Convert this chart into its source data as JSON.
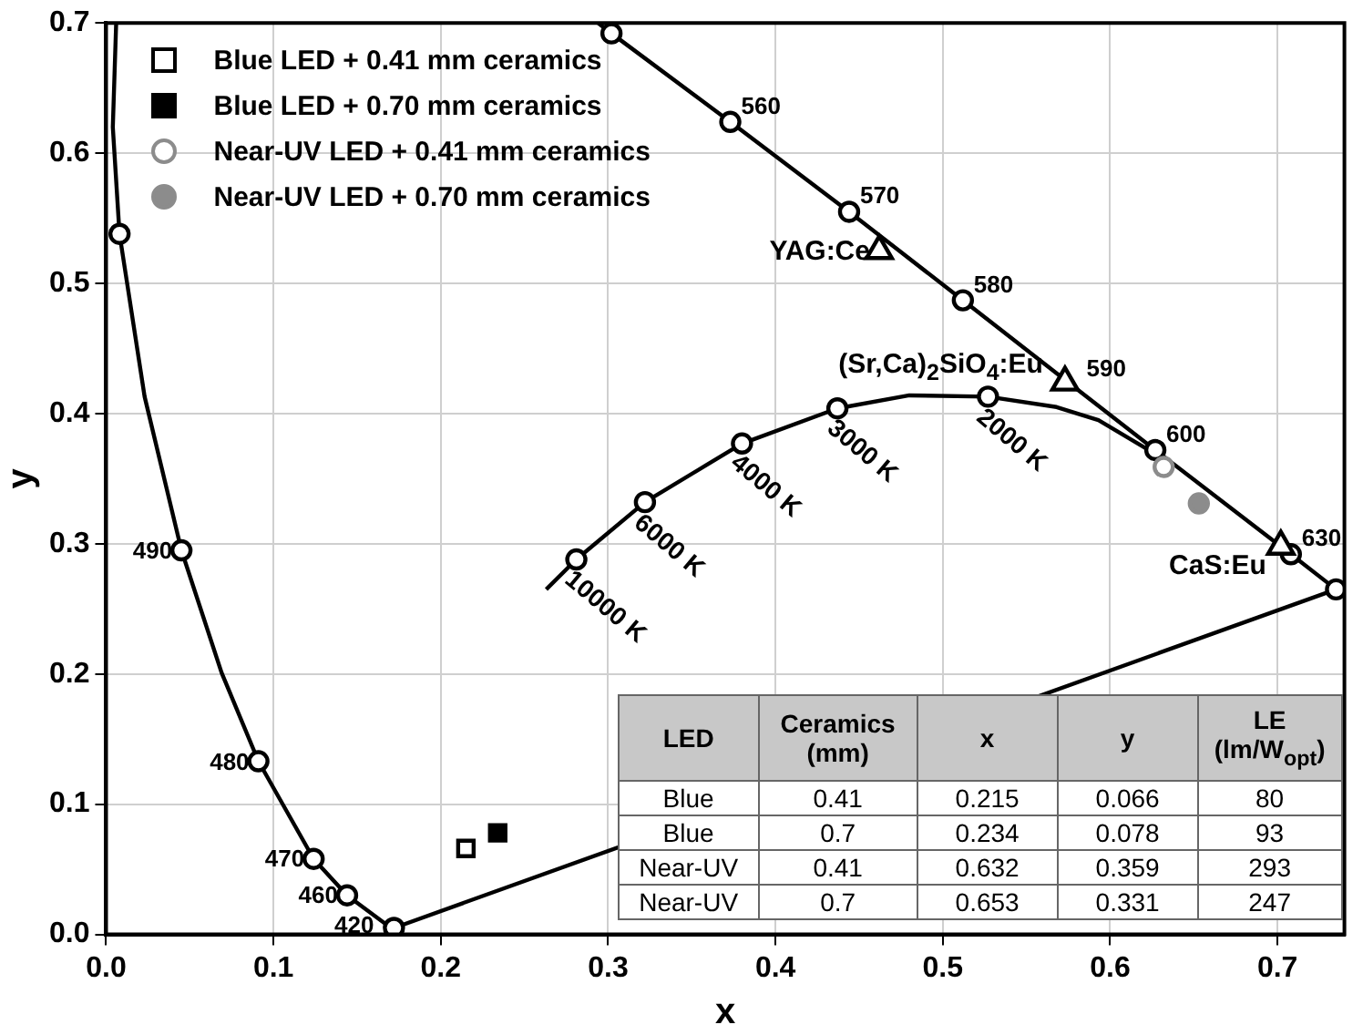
{
  "chart_data": {
    "type": "scatter",
    "xlabel": "x",
    "ylabel": "y",
    "xlim": [
      0,
      0.74
    ],
    "ylim": [
      0,
      0.7
    ],
    "xticks": [
      {
        "value": 0,
        "label": "0.0"
      },
      0.1,
      0.2,
      0.3,
      0.4,
      0.5,
      0.6,
      0.7
    ],
    "yticks": [
      {
        "value": 0,
        "label": "0.0"
      },
      0.1,
      0.2,
      0.3,
      0.4,
      0.5,
      0.6,
      0.7
    ],
    "grid": true,
    "legend": "top left",
    "series": [
      {
        "type": "line",
        "color": "#000000",
        "marker": "none",
        "x": [
          0.006,
          0.004,
          0.008,
          0.023,
          0.045,
          0.069,
          0.091,
          0.124,
          0.144,
          0.166,
          0.172,
          0.735,
          0.708,
          0.627,
          0.575,
          0.512,
          0.444,
          0.373,
          0.302,
          0.294
        ],
        "values": [
          0.7,
          0.62,
          0.538,
          0.413,
          0.295,
          0.201,
          0.133,
          0.058,
          0.03,
          0.009,
          0.005,
          0.265,
          0.292,
          0.372,
          0.424,
          0.487,
          0.555,
          0.624,
          0.692,
          0.7
        ]
      },
      {
        "type": "line",
        "color": "#000000",
        "marker": "none",
        "x": [
          0.263,
          0.281,
          0.322,
          0.38,
          0.437,
          0.48,
          0.527,
          0.568,
          0.593,
          0.623
        ],
        "values": [
          0.265,
          0.288,
          0.332,
          0.377,
          0.404,
          0.414,
          0.413,
          0.405,
          0.395,
          0.372
        ]
      },
      {
        "color": "#000000",
        "colors": [
          "#ffffff",
          "#ffffff",
          "#ffffff",
          "#ffffff",
          "#ffffff",
          "#ffffff",
          "#ffffff",
          "#ffffff",
          "#ffffff",
          "#ffffff",
          "#ffffff",
          "#ffffff",
          "#ffffff",
          "#ffffff"
        ],
        "marker": "circle",
        "x": [
          0.172,
          0.144,
          0.124,
          0.091,
          0.045,
          0.008,
          0.302,
          0.373,
          0.444,
          0.512,
          0.575,
          0.627,
          0.708,
          0.735
        ],
        "values": [
          0.005,
          0.03,
          0.058,
          0.133,
          0.295,
          0.538,
          0.692,
          0.624,
          0.555,
          0.487,
          null,
          0.372,
          0.292,
          0.265
        ]
      },
      {
        "color": "#000000",
        "colors": [
          "#ffffff",
          "#ffffff",
          "#ffffff",
          "#ffffff",
          "#ffffff"
        ],
        "marker": "circle",
        "x": [
          0.281,
          0.322,
          0.38,
          0.437,
          0.527
        ],
        "values": [
          0.288,
          0.332,
          0.377,
          0.404,
          0.413
        ]
      },
      {
        "color": "#000000",
        "colors": [
          "#ffffff",
          "#ffffff",
          "#ffffff"
        ],
        "marker": "triangle",
        "x": [
          0.462,
          0.573,
          0.702
        ],
        "values": [
          0.525,
          0.424,
          0.298
        ]
      },
      {
        "name": "Blue LED + 0.41 mm ceramics",
        "color": "#000000",
        "colors": [
          "#ffffff"
        ],
        "marker": "square",
        "x": [
          0.215
        ],
        "values": [
          0.066
        ]
      },
      {
        "name": "Blue LED + 0.70 mm ceramics",
        "color": "#000000",
        "marker": "square",
        "x": [
          0.234
        ],
        "values": [
          0.078
        ]
      },
      {
        "name": "Near-UV LED + 0.41 mm ceramics",
        "color": "#8c8c8c",
        "colors": [
          "#ffffff"
        ],
        "marker": "circle",
        "x": [
          0.632
        ],
        "values": [
          0.359
        ]
      },
      {
        "name": "Near-UV LED + 0.70 mm ceramics",
        "color": "#8c8c8c",
        "marker": "circle",
        "x": [
          0.653
        ],
        "values": [
          0.331
        ]
      }
    ],
    "annotations": [
      {
        "text": "420",
        "x": 0.172,
        "y": 0.005
      },
      {
        "text": "460",
        "x": 0.144,
        "y": 0.03
      },
      {
        "text": "470",
        "x": 0.124,
        "y": 0.058
      },
      {
        "text": "480",
        "x": 0.091,
        "y": 0.133
      },
      {
        "text": "490",
        "x": 0.045,
        "y": 0.295
      },
      {
        "text": "560",
        "x": 0.373,
        "y": 0.624
      },
      {
        "text": "570",
        "x": 0.444,
        "y": 0.555
      },
      {
        "text": "580",
        "x": 0.512,
        "y": 0.487
      },
      {
        "text": "590",
        "x": 0.575,
        "y": 0.424
      },
      {
        "text": "600",
        "x": 0.627,
        "y": 0.372
      },
      {
        "text": "630",
        "x": 0.708,
        "y": 0.292
      },
      {
        "text": "10000 K",
        "x": 0.281,
        "y": 0.288
      },
      {
        "text": "6000 K",
        "x": 0.322,
        "y": 0.332
      },
      {
        "text": "4000 K",
        "x": 0.38,
        "y": 0.377
      },
      {
        "text": "3000 K",
        "x": 0.437,
        "y": 0.404
      },
      {
        "text": "2000 K",
        "x": 0.527,
        "y": 0.413
      },
      {
        "text": "YAG:Ce",
        "x": 0.462,
        "y": 0.525
      },
      {
        "text": "(Sr,Ca)$_{2}$SiO$_{4}$:Eu",
        "x": 0.573,
        "y": 0.424
      },
      {
        "text": "CaS:Eu",
        "x": 0.702,
        "y": 0.298
      },
      "LED",
      "Ceramics (mm)",
      "x",
      "y",
      "LE (lm/W$_{opt}$)",
      "Blue",
      "0.41",
      "0.215",
      "0.066",
      "80",
      "Blue",
      "0.7",
      "0.234",
      "0.078",
      "93",
      "Near-UV",
      "0.41",
      "0.632",
      "0.359",
      "293",
      "Near-UV",
      "0.7",
      "0.653",
      "0.331",
      "247"
    ]
  }
}
